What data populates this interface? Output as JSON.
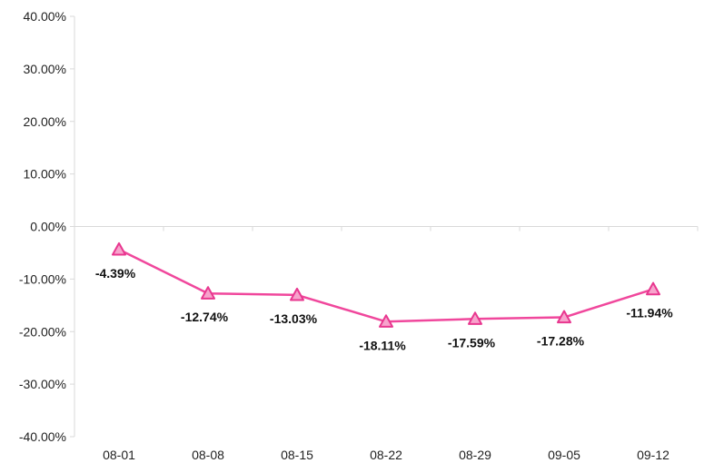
{
  "chart_data": {
    "type": "line",
    "categories": [
      "08-01",
      "08-08",
      "08-15",
      "08-22",
      "08-29",
      "09-05",
      "09-12"
    ],
    "series": [
      {
        "values": [
          -4.39,
          -12.74,
          -13.03,
          -18.11,
          -17.59,
          -17.28,
          -11.94
        ]
      }
    ],
    "data_labels": [
      "-4.39%",
      "-12.74%",
      "-13.03%",
      "-18.11%",
      "-17.59%",
      "-17.28%",
      "-11.94%"
    ],
    "y_ticks": [
      40,
      30,
      20,
      10,
      0,
      -10,
      -20,
      -30,
      -40
    ],
    "y_tick_labels": [
      "40.00%",
      "30.00%",
      "20.00%",
      "10.00%",
      "0.00%",
      "-10.00%",
      "-20.00%",
      "-30.00%",
      "-40.00%"
    ],
    "ylim": [
      -40,
      40
    ],
    "grid": false,
    "marker": "triangle",
    "colors": {
      "line": "#f0479c",
      "marker_fill": "#f7a3cc",
      "marker_stroke": "#e8378f",
      "axis": "#d9d9d9"
    }
  }
}
